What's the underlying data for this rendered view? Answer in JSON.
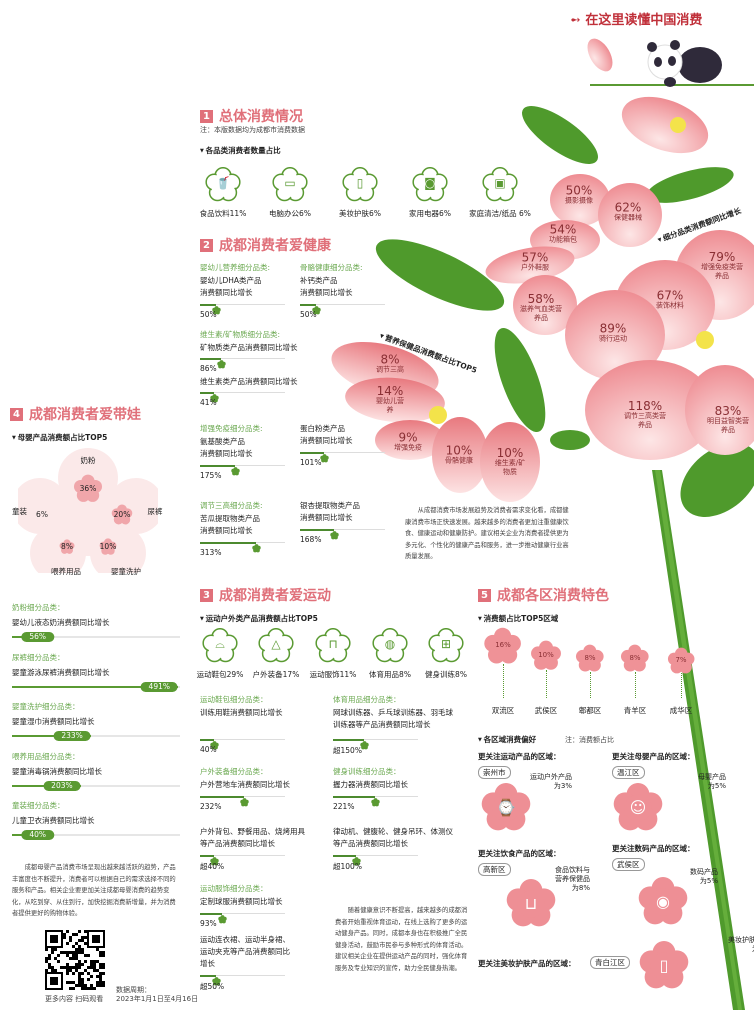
{
  "colors": {
    "accent": "#e0707a",
    "green": "#5a9a32",
    "petal": "#f2a0a4"
  },
  "header": {
    "title": "在这里读懂中国消费",
    "icon": "arrow-icon"
  },
  "s1": {
    "num": "1",
    "title": "总体消费情况",
    "note": "注：本版数据均为成都市消费数据",
    "subtitle": "各品类消费者数量占比",
    "items": [
      {
        "label": "食品饮料11%",
        "icon": "cup-icon"
      },
      {
        "label": "电脑办公6%",
        "icon": "monitor-icon"
      },
      {
        "label": "美妆护肤6%",
        "icon": "cosmetics-icon"
      },
      {
        "label": "家用电器6%",
        "icon": "washing-machine-icon"
      },
      {
        "label": "家庭清洁/纸品 6%",
        "icon": "tissue-icon"
      }
    ]
  },
  "s2": {
    "num": "2",
    "title": "成都消费者爱健康",
    "items": [
      {
        "cat": "婴幼儿营养细分品类:",
        "text": [
          "婴幼儿DHA类产品",
          "消费额同比增长"
        ],
        "value": "50%",
        "pct": 50
      },
      {
        "cat": "骨骼健康细分品类:",
        "text": [
          "补钙类产品",
          "消费额同比增长"
        ],
        "value": "50%",
        "pct": 50
      },
      {
        "cat": "维生素/矿物质细分品类:",
        "text": [
          "矿物质类产品消费额同比增长"
        ],
        "value": "86%",
        "pct": 86
      },
      {
        "cat": "",
        "text": [
          "维生素类产品消费额同比增长"
        ],
        "value": "41%",
        "pct": 41
      },
      {
        "cat": "增强免疫细分品类:",
        "text": [
          "氨基酸类产品",
          "消费额同比增长"
        ],
        "value": "175%",
        "pct": 175
      },
      {
        "cat": "",
        "text": [
          "蛋白粉类产品",
          "消费额同比增长"
        ],
        "value": "101%",
        "pct": 101
      },
      {
        "cat": "调节三高细分品类:",
        "text": [
          "苦瓜提取物类产品",
          "消费额同比增长"
        ],
        "value": "313%",
        "pct": 313
      },
      {
        "cat": "",
        "text": [
          "银杏提取物类产品",
          "消费额同比增长"
        ],
        "value": "168%",
        "pct": 168
      }
    ],
    "top5_label": "营养保健品消费额占比TOP5",
    "top5": [
      {
        "v": "8%",
        "l": "调节三高"
      },
      {
        "v": "14%",
        "l": "婴幼儿营养"
      },
      {
        "v": "9%",
        "l": "增强免疫"
      },
      {
        "v": "10%",
        "l": "骨骼健康"
      },
      {
        "v": "10%",
        "l": "维生素/矿物质"
      }
    ],
    "growth_label": "细分品类消费额同比增长",
    "growth": [
      {
        "v": "50%",
        "l": "摄影摄像"
      },
      {
        "v": "62%",
        "l": "保健器械"
      },
      {
        "v": "54%",
        "l": "功能箱包"
      },
      {
        "v": "57%",
        "l": "户外鞋服"
      },
      {
        "v": "58%",
        "l": "滋养气血类营养品"
      },
      {
        "v": "89%",
        "l": "骑行运动"
      },
      {
        "v": "67%",
        "l": "装饰材料"
      },
      {
        "v": "79%",
        "l": "增强免疫类营养品"
      },
      {
        "v": "118%",
        "l": "调节三高类营养品"
      },
      {
        "v": "83%",
        "l": "明目益智类营养品"
      }
    ],
    "paragraph": "从成都消费市场发展趋势及消费者需求变化看，成都健康消费市场正快速发展。越来越多的消费者更加注重健康饮食、健康运动和健康防护。建议相关企业为消费者提供更为多元化、个性化的健康产品和服务，进一步推动健康行业高质量发展。"
  },
  "s3": {
    "num": "3",
    "title": "成都消费者爱运动",
    "subtitle": "运动户外类产品消费额占比TOP5",
    "items": [
      {
        "label": "运动鞋包29%",
        "icon": "shoe-icon"
      },
      {
        "label": "户外装备17%",
        "icon": "tent-icon"
      },
      {
        "label": "运动服饰11%",
        "icon": "jacket-icon"
      },
      {
        "label": "体育用品8%",
        "icon": "ball-icon"
      },
      {
        "label": "健身训练8%",
        "icon": "dumbbell-icon"
      }
    ],
    "groups": [
      {
        "cat": "运动鞋包细分品类：",
        "text": [
          "训练用鞋消费额同比增长"
        ],
        "value": "40%",
        "pct": 40
      },
      {
        "cat": "体育用品细分品类：",
        "text": [
          "网球训练器、乒乓球训练器、羽毛球",
          "训练器等产品消费额同比增长"
        ],
        "value": "超150%",
        "pct": 150
      },
      {
        "cat": "户外装备细分品类：",
        "text": [
          "户外营地车消费额同比增长"
        ],
        "value": "232%",
        "pct": 232
      },
      {
        "cat": "健身训练细分品类：",
        "text": [
          "握力器消费额同比增长"
        ],
        "value": "221%",
        "pct": 221
      },
      {
        "cat": "",
        "text": [
          "户外背包、野餐用品、烧烤用具",
          "等产品消费额同比增长"
        ],
        "value": "超40%",
        "pct": 40
      },
      {
        "cat": "",
        "text": [
          "律动机、健腹轮、健身吊环、体测仪",
          "等产品消费额同比增长"
        ],
        "value": "超100%",
        "pct": 100
      },
      {
        "cat": "运动服饰细分品类：",
        "text": [
          "定制球服消费额同比增长"
        ],
        "value": "93%",
        "pct": 93
      },
      {
        "cat": "",
        "text": [
          "运动连衣裙、运动半身裙、",
          "运动夹克等产品消费额同比",
          "增长"
        ],
        "value": "超50%",
        "pct": 50
      }
    ],
    "paragraph": "随着健康意识不断提高，越来越多的成都消费者开始重视体育运动，在线上选购了更多的运动健身产品。同时，成都本身也在积极推广全民健身活动，鼓励市民参与多种形式的体育活动。建议相关企业在提供运动产品的同时，强化体育服务及专业知识的宣传，助力全民健身热潮。"
  },
  "s4": {
    "num": "4",
    "title": "成都消费者爱带娃",
    "subtitle": "母婴产品消费额占比TOP5",
    "top5": [
      {
        "l": "奶粉",
        "v": "36%"
      },
      {
        "l": "尿裤",
        "v": "20%"
      },
      {
        "l": "婴童洗护",
        "v": "10%"
      },
      {
        "l": "喂养用品",
        "v": "8%"
      },
      {
        "l": "童装",
        "v": "6%"
      }
    ],
    "bars": [
      {
        "cat": "奶粉细分品类：",
        "text": "婴幼儿液态奶消费额同比增长",
        "value": "56%",
        "pct": 56
      },
      {
        "cat": "尿裤细分品类：",
        "text": "婴童游泳尿裤消费额同比增长",
        "value": "491%",
        "pct": 491
      },
      {
        "cat": "婴童洗护细分品类：",
        "text": "婴童湿巾消费额同比增长",
        "value": "233%",
        "pct": 233
      },
      {
        "cat": "喂养用品细分品类：",
        "text": "婴童消毒锅消费额同比增长",
        "value": "203%",
        "pct": 203
      },
      {
        "cat": "童装细分品类：",
        "text": "儿童卫衣消费额同比增长",
        "value": "40%",
        "pct": 40
      }
    ],
    "paragraph": "成都母婴产品消费市场呈现出越来越活跃的趋势，产品丰富度也不断提升，消费者可以根据自己的需求选择不同的服务和产品。相关企业要更加关注成都母婴消费的趋势变化，从吃到穿、从住到行，加快挖掘消费新增量，并为消费者提供更好的购物体验。"
  },
  "s5": {
    "num": "5",
    "title": "成都各区消费特色",
    "subtitle": "消费额占比TOP5区域",
    "districts": [
      {
        "name": "双流区",
        "v": "16%",
        "pct": 16
      },
      {
        "name": "武侯区",
        "v": "10%",
        "pct": 10
      },
      {
        "name": "郫都区",
        "v": "8%",
        "pct": 8
      },
      {
        "name": "青羊区",
        "v": "8%",
        "pct": 8
      },
      {
        "name": "成华区",
        "v": "7%",
        "pct": 7
      }
    ],
    "pref_title": "各区域消费偏好",
    "pref_note": "注：消费额占比",
    "prefs": [
      {
        "q": "更关注运动产品的区域：",
        "area": "崇州市",
        "ann": [
          "运动户外产品",
          "为3%"
        ],
        "icon": "smartwatch-icon"
      },
      {
        "q": "更关注母婴产品的区域：",
        "area": "温江区",
        "ann": [
          "母婴产品",
          "为5%"
        ],
        "icon": "baby-face-icon"
      },
      {
        "q": "更关注饮食产品的区域：",
        "area": "高新区",
        "ann": [
          "食品饮料与",
          "营养保健品",
          "为8%"
        ],
        "icon": "drink-cup-icon"
      },
      {
        "q": "更关注数码产品的区域：",
        "area": "武侯区",
        "ann": [
          "数码产品",
          "为5%"
        ],
        "icon": "camera-icon"
      },
      {
        "q": "更关注美妆护肤产品的区域：",
        "area": "青白江区",
        "ann": [
          "美妆护肤产品",
          "为4%"
        ],
        "icon": "cosmetics-icon"
      }
    ]
  },
  "footer": {
    "qr_caption": "更多内容 扫码观看",
    "period_label": "数据周期：",
    "period": "2023年1月1日至4月16日"
  }
}
